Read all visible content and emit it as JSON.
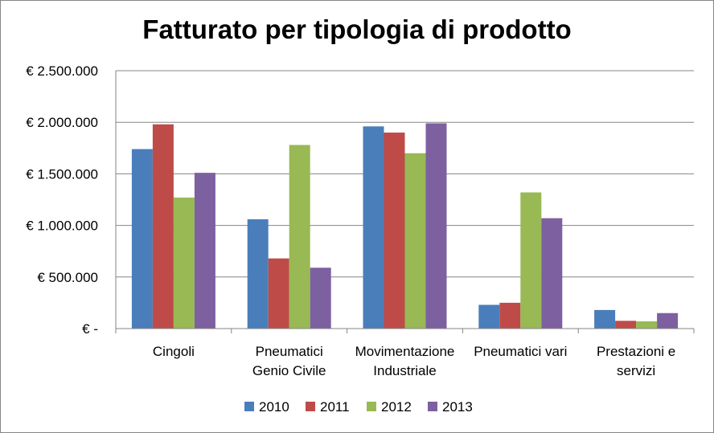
{
  "chart_data": {
    "type": "bar",
    "title": "Fatturato per tipologia di prodotto",
    "categories": [
      [
        "Cingoli"
      ],
      [
        "Pneumatici",
        "Genio Civile"
      ],
      [
        "Movimentazione",
        "Industriale"
      ],
      [
        "Pneumatici vari"
      ],
      [
        "Prestazioni e",
        "servizi"
      ]
    ],
    "series": [
      {
        "name": "2010",
        "color": "#4a7ebb",
        "values": [
          1740000,
          1060000,
          1960000,
          230000,
          180000
        ]
      },
      {
        "name": "2011",
        "color": "#be4b48",
        "values": [
          1980000,
          680000,
          1900000,
          250000,
          75000
        ]
      },
      {
        "name": "2012",
        "color": "#98b954",
        "values": [
          1270000,
          1780000,
          1700000,
          1320000,
          70000
        ]
      },
      {
        "name": "2013",
        "color": "#7d60a0",
        "values": [
          1510000,
          590000,
          1990000,
          1070000,
          150000
        ]
      }
    ],
    "y_ticks": [
      {
        "value": 0,
        "label": "€ -"
      },
      {
        "value": 500000,
        "label": "€ 500.000"
      },
      {
        "value": 1000000,
        "label": "€ 1.000.000"
      },
      {
        "value": 1500000,
        "label": "€ 1.500.000"
      },
      {
        "value": 2000000,
        "label": "€ 2.000.000"
      },
      {
        "value": 2500000,
        "label": "€ 2.500.000"
      }
    ],
    "ylim": [
      0,
      2500000
    ],
    "xlabel": "",
    "ylabel": "",
    "grid": true,
    "legend_position": "bottom"
  }
}
